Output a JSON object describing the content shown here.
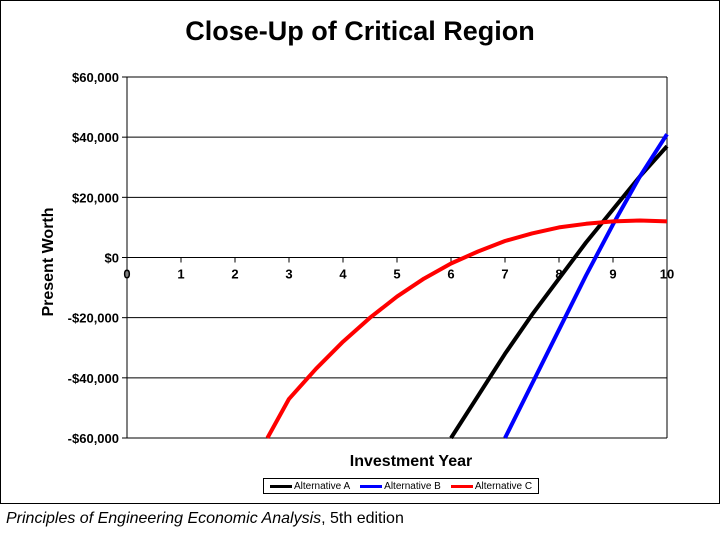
{
  "chart_data": {
    "type": "line",
    "title": "Close-Up of Critical Region",
    "xlabel": "Investment Year",
    "ylabel": "Present Worth",
    "x_ticks": [
      "0",
      "1",
      "2",
      "3",
      "4",
      "5",
      "6",
      "7",
      "8",
      "9",
      "10"
    ],
    "y_ticks": [
      "$60,000",
      "$40,000",
      "$20,000",
      "$0",
      "-$20,000",
      "-$40,000",
      "-$60,000"
    ],
    "xlim": [
      0,
      10
    ],
    "ylim": [
      -60000,
      60000
    ],
    "grid": "horizontal",
    "legend_position": "bottom",
    "series": [
      {
        "name": "Alternative A",
        "color": "#000000",
        "x": [
          6.0,
          6.5,
          7.0,
          7.5,
          8.0,
          8.5,
          9.0,
          9.5,
          10.0
        ],
        "y": [
          -60000,
          -46000,
          -32000,
          -19000,
          -7000,
          5000,
          16000,
          27000,
          37000
        ]
      },
      {
        "name": "Alternative B",
        "color": "#0000FF",
        "x": [
          7.0,
          7.5,
          8.0,
          8.5,
          9.0,
          9.5,
          10.0
        ],
        "y": [
          -60000,
          -42000,
          -24000,
          -6000,
          11000,
          27000,
          41000
        ]
      },
      {
        "name": "Alternative C",
        "color": "#FF0000",
        "x": [
          2.6,
          3.0,
          3.5,
          4.0,
          4.5,
          5.0,
          5.5,
          6.0,
          6.5,
          7.0,
          7.5,
          8.0,
          8.5,
          9.0,
          9.5,
          10.0
        ],
        "y": [
          -60000,
          -47000,
          -37000,
          -28000,
          -20000,
          -13000,
          -7000,
          -2000,
          2000,
          5500,
          8000,
          10000,
          11200,
          12000,
          12300,
          12000
        ]
      }
    ]
  },
  "footer": {
    "italic_text": "Principles of Engineering Economic Analysis",
    "plain_text": ", 5th edition"
  }
}
